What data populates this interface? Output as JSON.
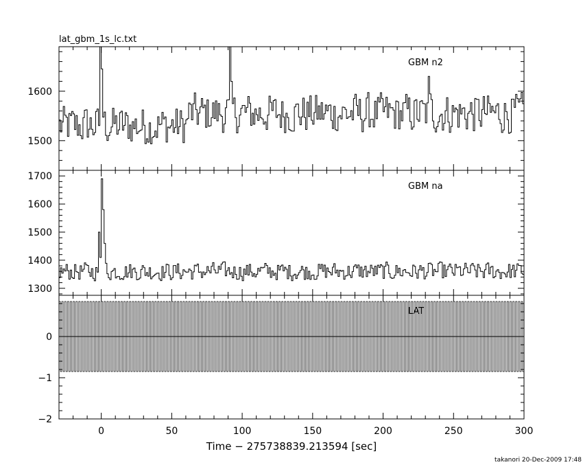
{
  "title": "lat_gbm_1s_lc.txt",
  "footer": "takanori 20-Dec-2009 17:48",
  "chart_data": [
    {
      "type": "line",
      "panel": "top",
      "label": "GBM n2",
      "ylim": [
        1440,
        1690
      ],
      "xlim": [
        -30,
        300
      ],
      "yticks": [
        1500,
        1600
      ],
      "xticks": [
        0,
        50,
        100,
        150,
        200,
        250,
        300
      ],
      "baseline": 1530,
      "noise": 38,
      "spikes": [
        {
          "x": 0,
          "y": 1645
        },
        {
          "x": -1,
          "y": 1690
        },
        {
          "x": 91,
          "y": 1690
        },
        {
          "x": 232,
          "y": 1630
        }
      ],
      "x": [
        -30,
        300
      ],
      "series": [
        {
          "start": -30,
          "end": 300,
          "step": 1
        }
      ]
    },
    {
      "type": "line",
      "panel": "middle",
      "label": "GBM na",
      "ylim": [
        1275,
        1720
      ],
      "xlim": [
        -30,
        300
      ],
      "yticks": [
        1300,
        1400,
        1500,
        1600,
        1700
      ],
      "xticks": [
        0,
        50,
        100,
        150,
        200,
        250,
        300
      ],
      "baseline": 1360,
      "noise": 30,
      "spikes": [
        {
          "x": -2,
          "y": 1500
        },
        {
          "x": 0,
          "y": 1690
        },
        {
          "x": 1,
          "y": 1580
        },
        {
          "x": 2,
          "y": 1460
        }
      ],
      "x": [
        -30,
        300
      ],
      "series": [
        {
          "start": -30,
          "end": 300,
          "step": 1
        }
      ]
    },
    {
      "type": "line",
      "panel": "bottom",
      "label": "LAT",
      "ylim": [
        -2,
        1
      ],
      "xlim": [
        -30,
        300
      ],
      "yticks": [
        -2,
        -1,
        0
      ],
      "xticks": [
        0,
        50,
        100,
        150,
        200,
        250,
        300
      ],
      "values_range": [
        -0.85,
        0.85
      ],
      "x": [
        -30,
        300
      ],
      "series": [
        {
          "start": -30,
          "end": 300,
          "step": 1
        }
      ]
    }
  ],
  "xlabel": "Time − 275738839.213594 [sec]"
}
